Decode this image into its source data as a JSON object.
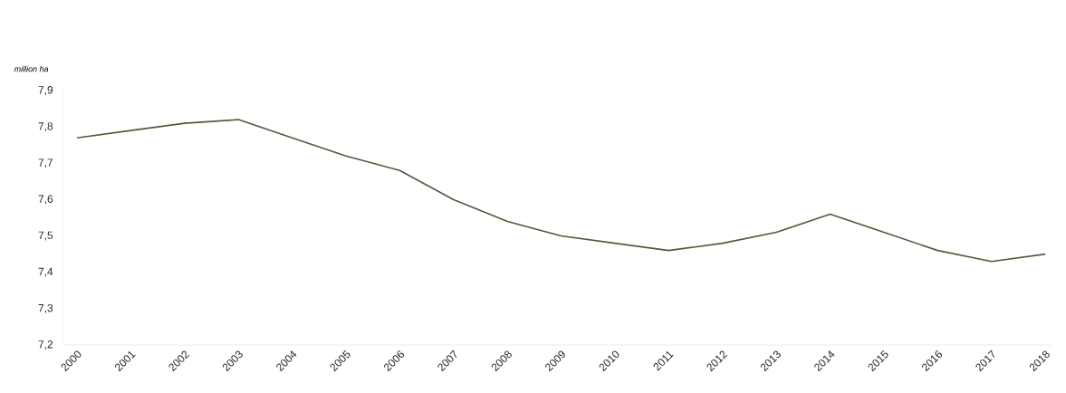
{
  "chart_data": {
    "type": "line",
    "ylabel": "million ha",
    "categories": [
      "2000",
      "2001",
      "2002",
      "2003",
      "2004",
      "2005",
      "2006",
      "2007",
      "2008",
      "2009",
      "2010",
      "2011",
      "2012",
      "2013",
      "2014",
      "2015",
      "2016",
      "2017",
      "2018"
    ],
    "series": [
      {
        "color": "#4b5e3a",
        "values": [
          7.77,
          7.79,
          7.81,
          7.82,
          7.77,
          7.72,
          7.68,
          7.6,
          7.54,
          7.5,
          7.48,
          7.46,
          7.48,
          7.51,
          7.56,
          7.51,
          7.46,
          7.43,
          7.45
        ]
      }
    ],
    "ylim": [
      7.2,
      7.9
    ],
    "yticks": [
      {
        "value": 7.2,
        "label": "7,2"
      },
      {
        "value": 7.3,
        "label": "7,3"
      },
      {
        "value": 7.4,
        "label": "7,4"
      },
      {
        "value": 7.5,
        "label": "7,5"
      },
      {
        "value": 7.6,
        "label": "7,6"
      },
      {
        "value": 7.7,
        "label": "7,7"
      },
      {
        "value": 7.8,
        "label": "7,8"
      },
      {
        "value": 7.9,
        "label": "7,9"
      }
    ]
  }
}
